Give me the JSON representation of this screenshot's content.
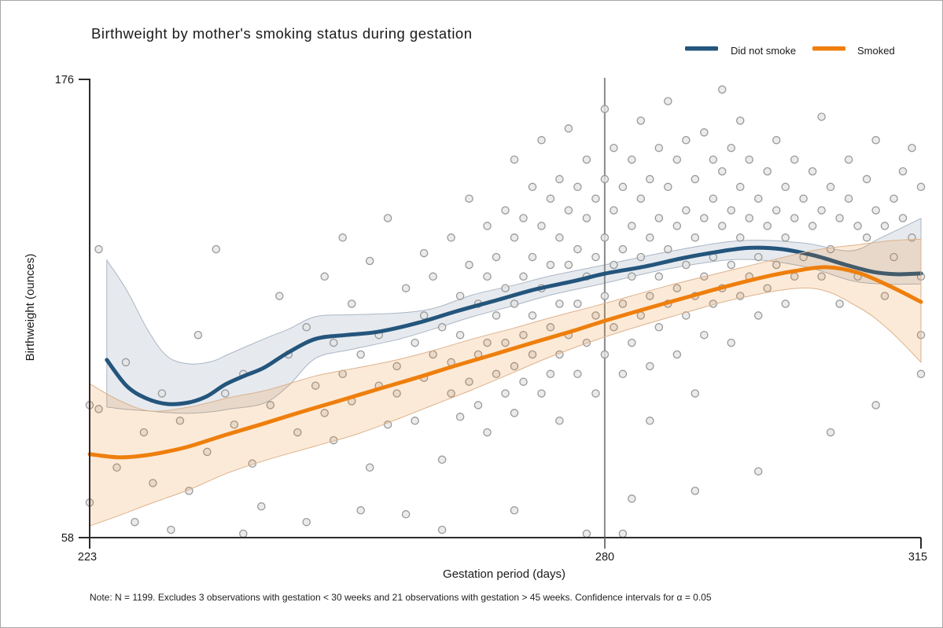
{
  "title": "Birthweight by mother's smoking status during gestation",
  "legend": {
    "items": [
      {
        "label": "Did not smoke",
        "color": "#24557C"
      },
      {
        "label": "Smoked",
        "color": "#EE7F0D"
      }
    ]
  },
  "axes": {
    "x": {
      "label": "Gestation period (days)",
      "ticks": [
        "223",
        "280",
        "315"
      ],
      "range": [
        223,
        315
      ]
    },
    "y": {
      "label": "Birthweight (ounces)",
      "ticks": [
        "58",
        "176"
      ],
      "range": [
        58,
        176
      ]
    }
  },
  "note": "Note: N = 1199. Excludes 3 observations with gestation < 30 weeks and 21 observations with gestation > 45 weeks. Confidence intervals for α = 0.05",
  "chart_data": {
    "type": "scatter",
    "title": "Birthweight by mother's smoking status during gestation",
    "xlabel": "Gestation period (days)",
    "ylabel": "Birthweight (ounces)",
    "xlim": [
      223,
      315
    ],
    "ylim": [
      58,
      176
    ],
    "grid": false,
    "legend_position": "top-right",
    "reference_line_x": 280,
    "series": [
      {
        "name": "Did not smoke",
        "color": "#24557C",
        "band_fill": "rgba(104,128,158,0.17)",
        "band_stroke": "#aab6c3",
        "line": {
          "x": [
            224.9,
            227.1,
            229.3,
            231.6,
            234,
            236,
            238,
            240.1,
            242.3,
            244.9,
            248,
            251.4,
            254.9,
            259.3,
            263.6,
            268,
            272.3,
            276.7,
            280.1,
            284.5,
            288.8,
            293.2,
            296.2,
            299.7,
            303.2,
            306.7,
            309.7,
            312.3,
            315
          ],
          "y": [
            103.6,
            96.9,
            93.7,
            92.3,
            92.7,
            94.3,
            97.3,
            99.5,
            101.6,
            105.4,
            109,
            110,
            110.8,
            113.1,
            116.1,
            118.9,
            121.7,
            123.9,
            125.8,
            127.6,
            129.8,
            131.6,
            132.4,
            132,
            130.4,
            128,
            126.2,
            125.6,
            125.8
          ]
        },
        "band": {
          "x": [
            224.9,
            227.1,
            229.5,
            231.6,
            234,
            236.5,
            238.5,
            242.3,
            245,
            248,
            252,
            257,
            261,
            265.4,
            270,
            274.1,
            280,
            287.1,
            295,
            302,
            307.2,
            310.6,
            315
          ],
          "low": [
            91.5,
            90.9,
            90.5,
            90.1,
            89.9,
            90.3,
            91,
            92.5,
            97,
            104,
            106.3,
            108.8,
            111.5,
            114.7,
            117.6,
            120.3,
            123.3,
            127,
            129.4,
            127.6,
            124,
            123.1,
            123.1
          ],
          "high": [
            129.2,
            121.5,
            111,
            104.5,
            102.6,
            103.2,
            105.2,
            109,
            111.5,
            114.7,
            115.2,
            115.6,
            116.8,
            120.3,
            122.8,
            125.2,
            128,
            131.4,
            134.2,
            133.6,
            131.6,
            135,
            139.9
          ]
        }
      },
      {
        "name": "Smoked",
        "color": "#EE7F0D",
        "band_fill": "rgba(238,127,13,0.16)",
        "band_stroke": "#dcb28c",
        "line": {
          "x": [
            223,
            226.2,
            228.8,
            231.4,
            234,
            238.1,
            241.9,
            246.2,
            250.6,
            254.9,
            259.3,
            263.6,
            268,
            272.3,
            276.7,
            280.1,
            284.5,
            288.8,
            293.2,
            297.5,
            301,
            304.5,
            308,
            311.4,
            315
          ],
          "y": [
            79.4,
            78.6,
            79,
            80,
            81.4,
            84.4,
            87,
            90.1,
            93.1,
            96.1,
            99.1,
            102.2,
            105.2,
            108.2,
            111.2,
            113.7,
            116.7,
            119.5,
            122.3,
            124.8,
            126.4,
            127.4,
            126,
            122.7,
            118.5
          ]
        },
        "band": {
          "x": [
            223,
            226.2,
            229.7,
            234,
            238.4,
            242.7,
            248,
            252.5,
            256.6,
            261,
            265.4,
            270,
            274.1,
            280,
            287.1,
            295,
            302.9,
            308.1,
            311.6,
            315
          ],
          "low": [
            61,
            63.6,
            66.7,
            70.3,
            74.7,
            78,
            81.5,
            84.5,
            88,
            92,
            96,
            100.5,
            104.5,
            109.5,
            114.5,
            119.5,
            122,
            117.1,
            111,
            103
          ],
          "high": [
            97.5,
            93.3,
            90.5,
            91.5,
            93.9,
            95.9,
            99.5,
            101.5,
            103.4,
            106,
            109,
            111.8,
            114.5,
            118.1,
            122.7,
            127.2,
            131.6,
            133.2,
            134.2,
            134.6
          ]
        }
      }
    ],
    "scatter": {
      "name": "observations",
      "marker": "circle-open",
      "stroke": "#8f8f8f",
      "fill": "#e4e4e4",
      "points": [
        [
          223,
          67
        ],
        [
          223,
          92
        ],
        [
          224,
          91
        ],
        [
          224,
          132
        ],
        [
          226,
          76
        ],
        [
          227,
          103
        ],
        [
          228,
          62
        ],
        [
          229,
          85
        ],
        [
          230,
          72
        ],
        [
          231,
          95
        ],
        [
          232,
          60
        ],
        [
          233,
          88
        ],
        [
          234,
          70
        ],
        [
          235,
          110
        ],
        [
          236,
          80
        ],
        [
          237,
          132
        ],
        [
          238,
          95
        ],
        [
          239,
          87
        ],
        [
          240,
          59
        ],
        [
          240,
          100
        ],
        [
          241,
          77
        ],
        [
          242,
          66
        ],
        [
          243,
          92
        ],
        [
          244,
          120
        ],
        [
          245,
          105
        ],
        [
          246,
          85
        ],
        [
          247,
          62
        ],
        [
          247,
          112
        ],
        [
          248,
          97
        ],
        [
          249,
          125
        ],
        [
          249,
          90
        ],
        [
          250,
          108
        ],
        [
          250,
          83
        ],
        [
          251,
          135
        ],
        [
          251,
          100
        ],
        [
          252,
          93
        ],
        [
          252,
          118
        ],
        [
          253,
          65
        ],
        [
          253,
          105
        ],
        [
          254,
          76
        ],
        [
          254,
          129
        ],
        [
          255,
          97
        ],
        [
          255,
          110
        ],
        [
          256,
          87
        ],
        [
          256,
          140
        ],
        [
          257,
          102
        ],
        [
          257,
          95
        ],
        [
          258,
          64
        ],
        [
          258,
          122
        ],
        [
          259,
          108
        ],
        [
          259,
          88
        ],
        [
          260,
          131
        ],
        [
          260,
          115
        ],
        [
          260,
          99
        ],
        [
          261,
          105
        ],
        [
          261,
          125
        ],
        [
          262,
          60
        ],
        [
          262,
          78
        ],
        [
          262,
          112
        ],
        [
          263,
          95
        ],
        [
          263,
          135
        ],
        [
          263,
          103
        ],
        [
          264,
          120
        ],
        [
          264,
          89
        ],
        [
          264,
          110
        ],
        [
          265,
          128
        ],
        [
          265,
          98
        ],
        [
          265,
          145
        ],
        [
          266,
          105
        ],
        [
          266,
          118
        ],
        [
          266,
          92
        ],
        [
          267,
          125
        ],
        [
          267,
          108
        ],
        [
          267,
          138
        ],
        [
          267,
          85
        ],
        [
          268,
          115
        ],
        [
          268,
          100
        ],
        [
          268,
          130
        ],
        [
          269,
          122
        ],
        [
          269,
          95
        ],
        [
          269,
          142
        ],
        [
          269,
          108
        ],
        [
          270,
          65
        ],
        [
          270,
          118
        ],
        [
          270,
          135
        ],
        [
          270,
          102
        ],
        [
          270,
          155
        ],
        [
          270,
          90
        ],
        [
          271,
          125
        ],
        [
          271,
          110
        ],
        [
          271,
          140
        ],
        [
          271,
          98
        ],
        [
          272,
          130
        ],
        [
          272,
          115
        ],
        [
          272,
          148
        ],
        [
          272,
          105
        ],
        [
          273,
          122
        ],
        [
          273,
          138
        ],
        [
          273,
          95
        ],
        [
          273,
          160
        ],
        [
          274,
          128
        ],
        [
          274,
          112
        ],
        [
          274,
          145
        ],
        [
          274,
          100
        ],
        [
          275,
          135
        ],
        [
          275,
          118
        ],
        [
          275,
          150
        ],
        [
          275,
          105
        ],
        [
          275,
          88
        ],
        [
          276,
          128
        ],
        [
          276,
          142
        ],
        [
          276,
          110
        ],
        [
          276,
          163
        ],
        [
          277,
          132
        ],
        [
          277,
          118
        ],
        [
          277,
          148
        ],
        [
          277,
          100
        ],
        [
          278,
          59
        ],
        [
          278,
          125
        ],
        [
          278,
          140
        ],
        [
          278,
          108
        ],
        [
          278,
          155
        ],
        [
          279,
          130
        ],
        [
          279,
          115
        ],
        [
          279,
          145
        ],
        [
          279,
          95
        ],
        [
          280,
          135
        ],
        [
          280,
          120
        ],
        [
          280,
          150
        ],
        [
          280,
          105
        ],
        [
          280,
          168
        ],
        [
          281,
          128
        ],
        [
          281,
          142
        ],
        [
          281,
          112
        ],
        [
          281,
          158
        ],
        [
          282,
          59
        ],
        [
          282,
          132
        ],
        [
          282,
          118
        ],
        [
          282,
          148
        ],
        [
          282,
          100
        ],
        [
          283,
          68
        ],
        [
          283,
          138
        ],
        [
          283,
          125
        ],
        [
          283,
          155
        ],
        [
          283,
          108
        ],
        [
          284,
          130
        ],
        [
          284,
          145
        ],
        [
          284,
          115
        ],
        [
          284,
          165
        ],
        [
          285,
          135
        ],
        [
          285,
          120
        ],
        [
          285,
          150
        ],
        [
          285,
          102
        ],
        [
          285,
          88
        ],
        [
          286,
          140
        ],
        [
          286,
          125
        ],
        [
          286,
          158
        ],
        [
          286,
          112
        ],
        [
          287,
          132
        ],
        [
          287,
          148
        ],
        [
          287,
          118
        ],
        [
          287,
          170
        ],
        [
          288,
          138
        ],
        [
          288,
          122
        ],
        [
          288,
          155
        ],
        [
          288,
          105
        ],
        [
          289,
          142
        ],
        [
          289,
          128
        ],
        [
          289,
          160
        ],
        [
          289,
          115
        ],
        [
          290,
          70
        ],
        [
          290,
          135
        ],
        [
          290,
          150
        ],
        [
          290,
          120
        ],
        [
          290,
          95
        ],
        [
          291,
          140
        ],
        [
          291,
          125
        ],
        [
          291,
          162
        ],
        [
          291,
          110
        ],
        [
          292,
          145
        ],
        [
          292,
          130
        ],
        [
          292,
          155
        ],
        [
          292,
          118
        ],
        [
          293,
          138
        ],
        [
          293,
          152
        ],
        [
          293,
          122
        ],
        [
          293,
          173
        ],
        [
          294,
          142
        ],
        [
          294,
          128
        ],
        [
          294,
          158
        ],
        [
          294,
          108
        ],
        [
          295,
          135
        ],
        [
          295,
          148
        ],
        [
          295,
          120
        ],
        [
          295,
          165
        ],
        [
          296,
          140
        ],
        [
          296,
          125
        ],
        [
          296,
          155
        ],
        [
          297,
          75
        ],
        [
          297,
          145
        ],
        [
          297,
          130
        ],
        [
          297,
          115
        ],
        [
          298,
          138
        ],
        [
          298,
          152
        ],
        [
          298,
          122
        ],
        [
          299,
          142
        ],
        [
          299,
          128
        ],
        [
          299,
          160
        ],
        [
          300,
          135
        ],
        [
          300,
          148
        ],
        [
          300,
          118
        ],
        [
          301,
          140
        ],
        [
          301,
          155
        ],
        [
          301,
          125
        ],
        [
          302,
          145
        ],
        [
          302,
          130
        ],
        [
          303,
          138
        ],
        [
          303,
          152
        ],
        [
          304,
          142
        ],
        [
          304,
          125
        ],
        [
          304,
          166
        ],
        [
          305,
          85
        ],
        [
          305,
          148
        ],
        [
          305,
          132
        ],
        [
          306,
          140
        ],
        [
          306,
          118
        ],
        [
          307,
          145
        ],
        [
          307,
          155
        ],
        [
          308,
          138
        ],
        [
          308,
          125
        ],
        [
          309,
          150
        ],
        [
          309,
          135
        ],
        [
          310,
          92
        ],
        [
          310,
          142
        ],
        [
          310,
          160
        ],
        [
          311,
          138
        ],
        [
          311,
          120
        ],
        [
          312,
          145
        ],
        [
          312,
          130
        ],
        [
          313,
          152
        ],
        [
          313,
          140
        ],
        [
          314,
          135
        ],
        [
          314,
          158
        ],
        [
          315,
          148
        ],
        [
          315,
          125
        ],
        [
          315,
          110
        ],
        [
          315,
          100
        ]
      ]
    }
  }
}
